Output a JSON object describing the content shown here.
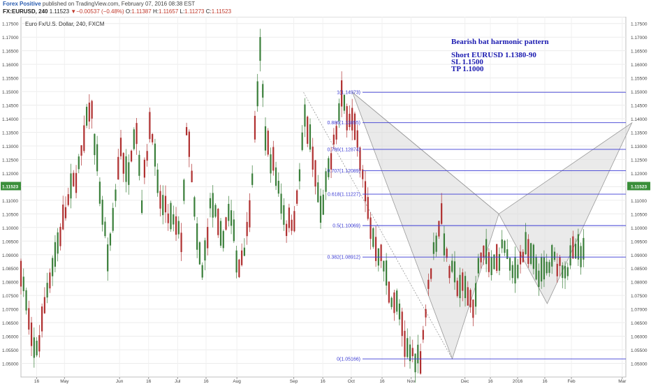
{
  "header": {
    "author": "Forex Positive",
    "published": "published on TradingView.com, February 07, 2016 08:38 EST",
    "symbol": "FX:EURUSD, 240",
    "last": "1.11523",
    "change_arrow": "▼",
    "change": "−0.00537 (−0.48%)",
    "o_label": "O:",
    "o": "1.11387",
    "h_label": "H:",
    "h": "1.11657",
    "l_label": "L:",
    "l": "1.11273",
    "c_label": "C:",
    "c": "1.11523"
  },
  "chart_data": {
    "type": "candlestick",
    "title": "Euro Fx/U.S. Dollar, 240, FXCM",
    "ylim": [
      1.045,
      1.1775
    ],
    "y_ticks": [
      "1.17500",
      "1.17000",
      "1.16500",
      "1.16000",
      "1.15500",
      "1.15000",
      "1.14500",
      "1.14000",
      "1.13500",
      "1.13000",
      "1.12500",
      "1.12000",
      "1.11500",
      "1.11000",
      "1.10500",
      "1.10000",
      "1.09500",
      "1.09000",
      "1.08500",
      "1.08000",
      "1.07500",
      "1.07000",
      "1.06500",
      "1.06000",
      "1.05500",
      "1.05000"
    ],
    "x_ticks": [
      "16",
      "May",
      "Jun",
      "16",
      "Jul",
      "16",
      "Aug",
      "Sep",
      "16",
      "Oct",
      "16",
      "Nov",
      "Dec",
      "16",
      "2016",
      "16",
      "Feb",
      "Mar"
    ],
    "last_price": "1.11523",
    "path_x": [
      0.0,
      0.02,
      0.03,
      0.045,
      0.075,
      0.1,
      0.115,
      0.13,
      0.145,
      0.165,
      0.175,
      0.19,
      0.2,
      0.215,
      0.225,
      0.235,
      0.25,
      0.265,
      0.275,
      0.29,
      0.3,
      0.315,
      0.33,
      0.345,
      0.36,
      0.375,
      0.385,
      0.395,
      0.405,
      0.42,
      0.44,
      0.455,
      0.47,
      0.49,
      0.495,
      0.51,
      0.53,
      0.55,
      0.58,
      0.6,
      0.61,
      0.625,
      0.635,
      0.66,
      0.68,
      0.695,
      0.705,
      0.72,
      0.735,
      0.75,
      0.76,
      0.77,
      0.78,
      0.8,
      0.81,
      0.825,
      0.835,
      0.86,
      0.88,
      0.905,
      0.915,
      0.925,
      0.935,
      0.945,
      0.955,
      0.965,
      0.975,
      0.985,
      1.0
    ],
    "path_y": [
      1.086,
      1.054,
      1.058,
      1.08,
      1.107,
      1.126,
      1.147,
      1.115,
      1.087,
      1.131,
      1.118,
      1.14,
      1.11,
      1.142,
      1.115,
      1.107,
      1.102,
      1.096,
      1.138,
      1.097,
      1.083,
      1.111,
      1.095,
      1.106,
      1.085,
      1.099,
      1.128,
      1.165,
      1.132,
      1.121,
      1.1,
      1.106,
      1.142,
      1.115,
      1.105,
      1.121,
      1.147,
      1.138,
      1.098,
      1.086,
      1.076,
      1.07,
      1.055,
      1.052,
      1.089,
      1.105,
      1.086,
      1.08,
      1.077,
      1.071,
      1.092,
      1.088,
      1.085,
      1.094,
      1.082,
      1.088,
      1.092,
      1.082,
      1.088,
      1.085,
      1.092,
      1.089,
      1.09,
      1.096,
      1.085,
      1.088,
      1.092,
      1.122,
      1.115
    ],
    "fib_levels": [
      {
        "label": "1(1.14973)",
        "value": 1.14973
      },
      {
        "label": "0.886(1.13855)",
        "value": 1.13855
      },
      {
        "label": "0.786(1.12874)",
        "value": 1.12874
      },
      {
        "label": "0.707(1.12089)",
        "value": 1.12089
      },
      {
        "label": "0.618(1.11227)",
        "value": 1.11227
      },
      {
        "label": "0.5(1.10069)",
        "value": 1.10069
      },
      {
        "label": "0.382(1.08912)",
        "value": 1.08912
      },
      {
        "label": "0(1.05166)",
        "value": 1.05166
      }
    ],
    "pattern_points": [
      {
        "t": 0.548,
        "v": 1.1497
      },
      {
        "t": 0.713,
        "v": 1.0517
      },
      {
        "t": 0.79,
        "v": 1.105
      },
      {
        "t": 0.87,
        "v": 1.072
      },
      {
        "t": 1.01,
        "v": 1.1385
      }
    ],
    "annotations": [
      "Bearish bat harmonic pattern",
      "Short EURUSD 1.1380-90",
      "SL 1.1500",
      "TP 1.1000"
    ],
    "colors": {
      "up": "#3a7f3a",
      "down": "#b03030",
      "fib": "#3b3bd4",
      "pattern_fill": "#d8d8d8",
      "pattern_stroke": "#9a9a9a",
      "annotation": "#1a1ab0",
      "price_badge": "#3a8f3a"
    }
  }
}
